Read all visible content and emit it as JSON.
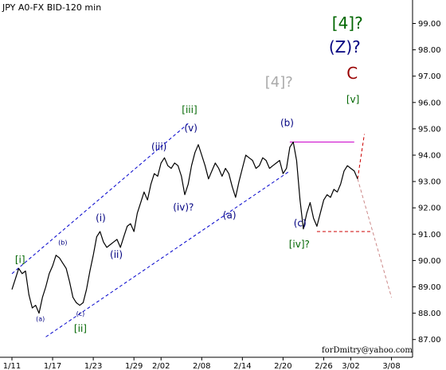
{
  "chart_data": {
    "type": "line",
    "title": "JPY A0-FX BID-120 min",
    "watermark": "forDmitry@yahoo.com",
    "xlabel": "",
    "ylabel": "",
    "ylim": [
      86.6,
      99.8
    ],
    "grid": false,
    "y_ticks": [
      "87.00",
      "88.00",
      "89.00",
      "90.00",
      "91.00",
      "92.00",
      "93.00",
      "94.00",
      "95.00",
      "96.00",
      "97.00",
      "98.00",
      "99.00"
    ],
    "x_tick_labels": [
      "1/11",
      "1/17",
      "1/23",
      "1/29",
      "2/02",
      "2/08",
      "2/14",
      "2/20",
      "2/26",
      "3/02",
      "3/08"
    ],
    "x_tick_index": [
      0,
      6,
      12,
      18,
      22,
      28,
      34,
      40,
      46,
      50,
      56
    ],
    "x_range": [
      0,
      57
    ],
    "series": [
      {
        "color": "#000000",
        "points": [
          [
            0,
            88.9
          ],
          [
            0.5,
            89.3
          ],
          [
            1,
            89.7
          ],
          [
            1.5,
            89.5
          ],
          [
            2,
            89.6
          ],
          [
            2.5,
            88.7
          ],
          [
            3,
            88.2
          ],
          [
            3.5,
            88.3
          ],
          [
            4,
            88.0
          ],
          [
            4.5,
            88.6
          ],
          [
            5,
            89.0
          ],
          [
            5.5,
            89.5
          ],
          [
            6,
            89.8
          ],
          [
            6.5,
            90.2
          ],
          [
            7,
            90.1
          ],
          [
            7.5,
            89.9
          ],
          [
            8,
            89.7
          ],
          [
            8.5,
            89.2
          ],
          [
            9,
            88.6
          ],
          [
            9.5,
            88.4
          ],
          [
            10,
            88.3
          ],
          [
            10.5,
            88.4
          ],
          [
            11,
            88.9
          ],
          [
            11.5,
            89.6
          ],
          [
            12,
            90.2
          ],
          [
            12.5,
            90.9
          ],
          [
            13,
            91.1
          ],
          [
            13.5,
            90.7
          ],
          [
            14,
            90.5
          ],
          [
            14.5,
            90.6
          ],
          [
            15,
            90.7
          ],
          [
            15.5,
            90.8
          ],
          [
            16,
            90.5
          ],
          [
            16.5,
            90.9
          ],
          [
            17,
            91.3
          ],
          [
            17.5,
            91.4
          ],
          [
            18,
            91.1
          ],
          [
            18.5,
            91.8
          ],
          [
            19,
            92.2
          ],
          [
            19.5,
            92.6
          ],
          [
            20,
            92.3
          ],
          [
            20.5,
            92.9
          ],
          [
            21,
            93.3
          ],
          [
            21.5,
            93.2
          ],
          [
            22,
            93.7
          ],
          [
            22.5,
            93.9
          ],
          [
            23,
            93.6
          ],
          [
            23.5,
            93.5
          ],
          [
            24,
            93.7
          ],
          [
            24.5,
            93.6
          ],
          [
            25,
            93.2
          ],
          [
            25.5,
            92.5
          ],
          [
            26,
            92.9
          ],
          [
            26.5,
            93.6
          ],
          [
            27,
            94.1
          ],
          [
            27.5,
            94.4
          ],
          [
            28,
            94.0
          ],
          [
            28.5,
            93.6
          ],
          [
            29,
            93.1
          ],
          [
            29.5,
            93.4
          ],
          [
            30,
            93.7
          ],
          [
            30.5,
            93.5
          ],
          [
            31,
            93.2
          ],
          [
            31.5,
            93.5
          ],
          [
            32,
            93.3
          ],
          [
            32.5,
            92.8
          ],
          [
            33,
            92.4
          ],
          [
            33.5,
            93.0
          ],
          [
            34,
            93.5
          ],
          [
            34.5,
            94.0
          ],
          [
            35,
            93.9
          ],
          [
            35.5,
            93.8
          ],
          [
            36,
            93.5
          ],
          [
            36.5,
            93.6
          ],
          [
            37,
            93.9
          ],
          [
            37.5,
            93.8
          ],
          [
            38,
            93.5
          ],
          [
            38.5,
            93.6
          ],
          [
            39,
            93.7
          ],
          [
            39.5,
            93.8
          ],
          [
            40,
            93.3
          ],
          [
            40.5,
            93.5
          ],
          [
            41,
            94.3
          ],
          [
            41.5,
            94.5
          ],
          [
            42,
            93.8
          ],
          [
            42.5,
            92.3
          ],
          [
            43,
            91.2
          ],
          [
            43.5,
            91.8
          ],
          [
            44,
            92.2
          ],
          [
            44.5,
            91.6
          ],
          [
            45,
            91.3
          ],
          [
            45.5,
            91.8
          ],
          [
            46,
            92.3
          ],
          [
            46.5,
            92.5
          ],
          [
            47,
            92.4
          ],
          [
            47.5,
            92.7
          ],
          [
            48,
            92.6
          ],
          [
            48.5,
            92.9
          ],
          [
            49,
            93.4
          ],
          [
            49.5,
            93.6
          ],
          [
            50,
            93.5
          ],
          [
            50.5,
            93.4
          ],
          [
            51,
            93.1
          ]
        ]
      }
    ],
    "channel_lines": [
      {
        "color": "#0000cc",
        "from": [
          0,
          89.5
        ],
        "to": [
          26,
          95.2
        ]
      },
      {
        "color": "#0000cc",
        "from": [
          5,
          87.1
        ],
        "to": [
          41,
          93.4
        ]
      }
    ],
    "horizontal_levels": [
      {
        "color": "#cc00cc",
        "style": "solid",
        "y": 94.5,
        "x_range": [
          41,
          50.5
        ]
      },
      {
        "color": "#cc0000",
        "style": "dashed",
        "y": 91.1,
        "x_range": [
          45,
          53
        ]
      }
    ],
    "projections": [
      {
        "color": "#cc0000",
        "style": "dashed",
        "from": [
          51,
          93.1
        ],
        "to": [
          52,
          94.8
        ]
      },
      {
        "color": "#cc8888",
        "style": "dashed",
        "from": [
          51,
          93.1
        ],
        "to": [
          56,
          88.6
        ]
      }
    ],
    "annotations": [
      {
        "text": "[i]",
        "x": 1.2,
        "y": 89.9,
        "color": "#006600",
        "size": 12
      },
      {
        "text": "(a)",
        "x": 4.2,
        "y": 87.7,
        "color": "#000080",
        "size": 8
      },
      {
        "text": "(b)",
        "x": 7.5,
        "y": 90.6,
        "color": "#000080",
        "size": 8
      },
      {
        "text": "(c)",
        "x": 10.1,
        "y": 87.9,
        "color": "#000080",
        "size": 8
      },
      {
        "text": "[ii]",
        "x": 10.1,
        "y": 87.3,
        "color": "#006600",
        "size": 12
      },
      {
        "text": "(i)",
        "x": 13.1,
        "y": 91.5,
        "color": "#000080",
        "size": 12
      },
      {
        "text": "(ii)",
        "x": 15.4,
        "y": 90.1,
        "color": "#000080",
        "size": 12
      },
      {
        "text": "(iii)",
        "x": 21.7,
        "y": 94.2,
        "color": "#000080",
        "size": 12
      },
      {
        "text": "[iii]",
        "x": 26.2,
        "y": 95.6,
        "color": "#006600",
        "size": 12
      },
      {
        "text": "(v)",
        "x": 26.4,
        "y": 94.9,
        "color": "#000080",
        "size": 12
      },
      {
        "text": "(iv)?",
        "x": 25.3,
        "y": 91.9,
        "color": "#000080",
        "size": 12
      },
      {
        "text": "(a)",
        "x": 32.1,
        "y": 91.6,
        "color": "#000080",
        "size": 12
      },
      {
        "text": "(b)",
        "x": 40.6,
        "y": 95.1,
        "color": "#000080",
        "size": 12
      },
      {
        "text": "[4]?",
        "x": 39.4,
        "y": 96.6,
        "color": "#aaaaaa",
        "size": 18
      },
      {
        "text": "(c)",
        "x": 42.5,
        "y": 91.3,
        "color": "#000080",
        "size": 12
      },
      {
        "text": "[iv]?",
        "x": 42.4,
        "y": 90.5,
        "color": "#006600",
        "size": 12
      },
      {
        "text": "[4]?",
        "x": 49.5,
        "y": 98.8,
        "color": "#006600",
        "size": 20
      },
      {
        "text": "(Z)?",
        "x": 49.1,
        "y": 97.9,
        "color": "#000080",
        "size": 20
      },
      {
        "text": "C",
        "x": 50.2,
        "y": 96.9,
        "color": "#990000",
        "size": 20
      },
      {
        "text": "[v]",
        "x": 50.3,
        "y": 96.0,
        "color": "#006600",
        "size": 12
      }
    ]
  }
}
